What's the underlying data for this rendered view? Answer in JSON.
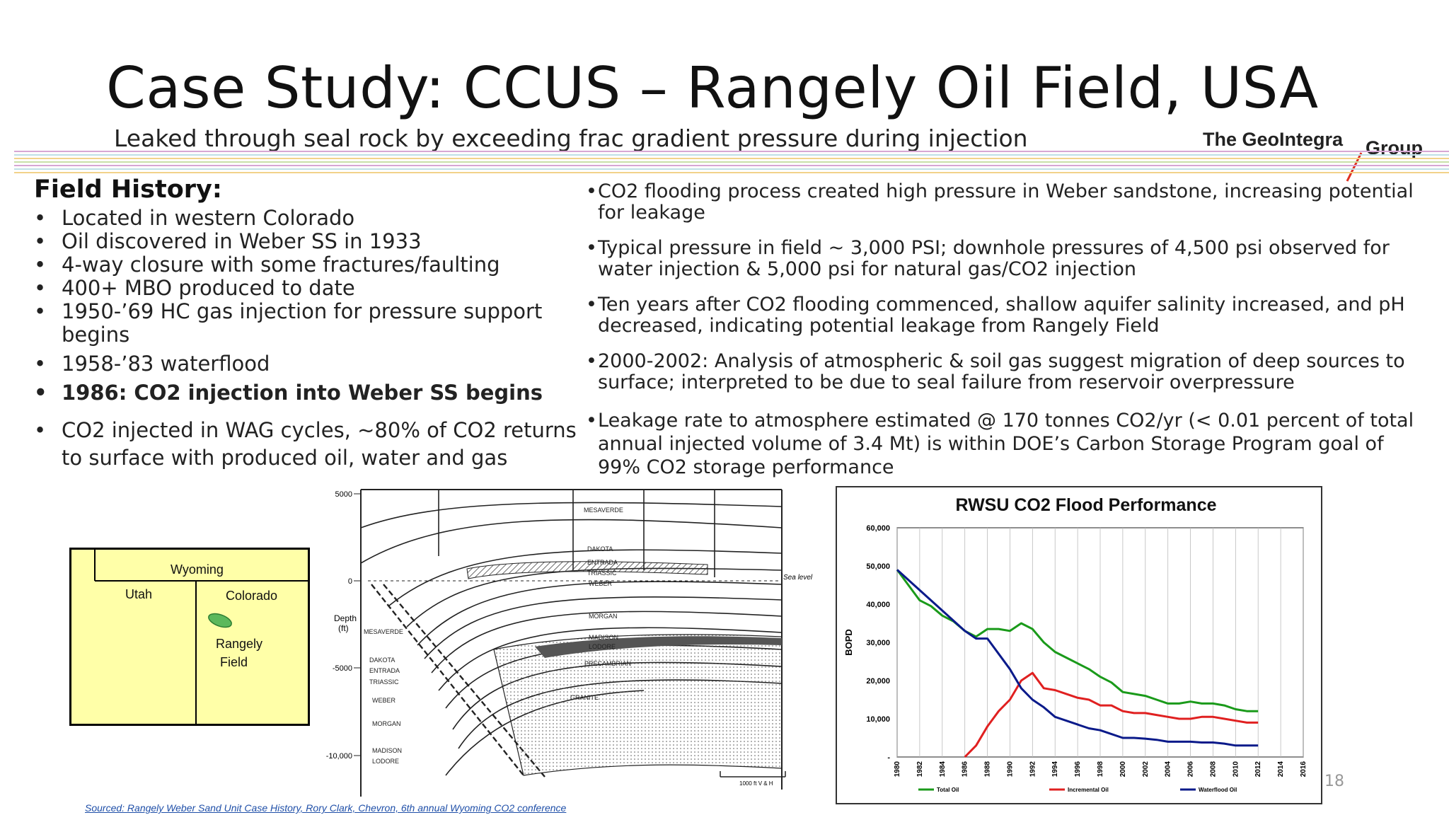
{
  "title": "Case Study: CCUS – Rangely Oil Field, USA",
  "subtitle": "Leaked through seal rock by exceeding frac gradient pressure during injection",
  "logo": {
    "line1": "The GeoIntegra",
    "line2": "Group"
  },
  "field_history": {
    "heading": "Field History:",
    "items": [
      "Located in western Colorado",
      "Oil discovered in Weber SS in 1933",
      "4-way closure with some fractures/faulting",
      "400+ MBO produced to date",
      "1950-’69 HC gas injection for pressure support begins",
      "1958-’83 waterflood",
      "1986: CO2 injection into Weber SS begins",
      "CO2 injected in WAG cycles, ~80% of CO2 returns to surface with produced oil, water and gas"
    ]
  },
  "right_points": [
    "CO2 flooding process created high pressure in Weber sandstone, increasing potential for leakage",
    "Typical pressure in field ~ 3,000 PSI; downhole pressures of 4,500 psi observed for water injection & 5,000 psi for natural gas/CO2 injection",
    "Ten years after CO2 flooding commenced, shallow aquifer salinity increased, and pH decreased, indicating potential leakage from Rangely Field",
    "2000-2002: Analysis of atmospheric & soil gas suggest migration of deep sources to surface; interpreted to be due to seal failure from reservoir overpressure",
    "Leakage rate to atmosphere estimated @ 170 tonnes CO2/yr (< 0.01 percent of total annual injected volume of 3.4 Mt) is within DOE’s Carbon Storage Program goal of 99% CO2 storage performance"
  ],
  "map": {
    "wyoming": "Wyoming",
    "utah": "Utah",
    "colorado": "Colorado",
    "field_line1": "Rangely",
    "field_line2": "Field",
    "fill_color": "#ffffa8",
    "field_color": "#5cb85c"
  },
  "cross_section": {
    "depth_label": "Depth",
    "depth_unit": "(ft)",
    "ticks": [
      "5000",
      "0",
      "-5000",
      "-10,000"
    ],
    "sea_level": "Sea level",
    "scale_label": "1000 ft V & H",
    "right_units": [
      "MESAVERDE",
      "DAKOTA",
      "ENTRADA",
      "TRIASSIC",
      "WEBER",
      "MORGAN",
      "MADISON",
      "LODORE",
      "PRECAMBRIAN",
      "GRANITE"
    ],
    "left_units": [
      "MESAVERDE",
      "DAKOTA",
      "ENTRADA",
      "TRIASSIC",
      "WEBER",
      "MORGAN",
      "MADISON",
      "LODORE"
    ]
  },
  "chart_data": {
    "type": "line",
    "title": "RWSU CO2 Flood Performance",
    "ylabel": "BOPD",
    "ylim": [
      0,
      60000
    ],
    "yticks": [
      "60,000",
      "50,000",
      "40,000",
      "30,000",
      "20,000",
      "10,000",
      "-"
    ],
    "xticks": [
      "1980",
      "1982",
      "1984",
      "1986",
      "1988",
      "1990",
      "1992",
      "1994",
      "1996",
      "1998",
      "2000",
      "2002",
      "2004",
      "2006",
      "2008",
      "2010",
      "2012",
      "2014",
      "2016"
    ],
    "xlim": [
      1980,
      2016
    ],
    "series": [
      {
        "name": "Total Oil",
        "color": "#1a9a1a",
        "x": [
          1980,
          1981,
          1982,
          1983,
          1984,
          1985,
          1986,
          1987,
          1988,
          1989,
          1990,
          1991,
          1992,
          1993,
          1994,
          1995,
          1996,
          1997,
          1998,
          1999,
          2000,
          2001,
          2002,
          2003,
          2004,
          2005,
          2006,
          2007,
          2008,
          2009,
          2010,
          2011,
          2012
        ],
        "values": [
          49000,
          45000,
          41000,
          39500,
          37000,
          35500,
          33000,
          31500,
          33500,
          33500,
          33000,
          35000,
          33500,
          30000,
          27500,
          26000,
          24500,
          23000,
          21000,
          19500,
          17000,
          16500,
          16000,
          15000,
          14000,
          14000,
          14500,
          14000,
          14000,
          13500,
          12500,
          12000,
          12000
        ]
      },
      {
        "name": "Incremental Oil",
        "color": "#e02020",
        "x": [
          1986,
          1987,
          1988,
          1989,
          1990,
          1991,
          1992,
          1993,
          1994,
          1995,
          1996,
          1997,
          1998,
          1999,
          2000,
          2001,
          2002,
          2003,
          2004,
          2005,
          2006,
          2007,
          2008,
          2009,
          2010,
          2011,
          2012
        ],
        "values": [
          0,
          3000,
          8000,
          12000,
          15000,
          20000,
          22000,
          18000,
          17500,
          16500,
          15500,
          15000,
          13500,
          13500,
          12000,
          11500,
          11500,
          11000,
          10500,
          10000,
          10000,
          10500,
          10500,
          10000,
          9500,
          9000,
          9000
        ]
      },
      {
        "name": "Waterflood Oil",
        "color": "#0a1a8a",
        "x": [
          1980,
          1986,
          1987,
          1988,
          1989,
          1990,
          1991,
          1992,
          1993,
          1994,
          1995,
          1996,
          1997,
          1998,
          1999,
          2000,
          2001,
          2002,
          2003,
          2004,
          2005,
          2006,
          2007,
          2008,
          2009,
          2010,
          2011,
          2012
        ],
        "values": [
          49000,
          33000,
          31000,
          31000,
          27000,
          23000,
          18000,
          15000,
          13000,
          10500,
          9500,
          8500,
          7500,
          7000,
          6000,
          5000,
          5000,
          4800,
          4500,
          4000,
          4000,
          4000,
          3800,
          3800,
          3500,
          3000,
          3000,
          3000
        ]
      }
    ]
  },
  "page_number": "18",
  "source": "Sourced: Rangely Weber Sand Unit Case History, Rory Clark, Chevron, 6th annual Wyoming CO2 conference"
}
